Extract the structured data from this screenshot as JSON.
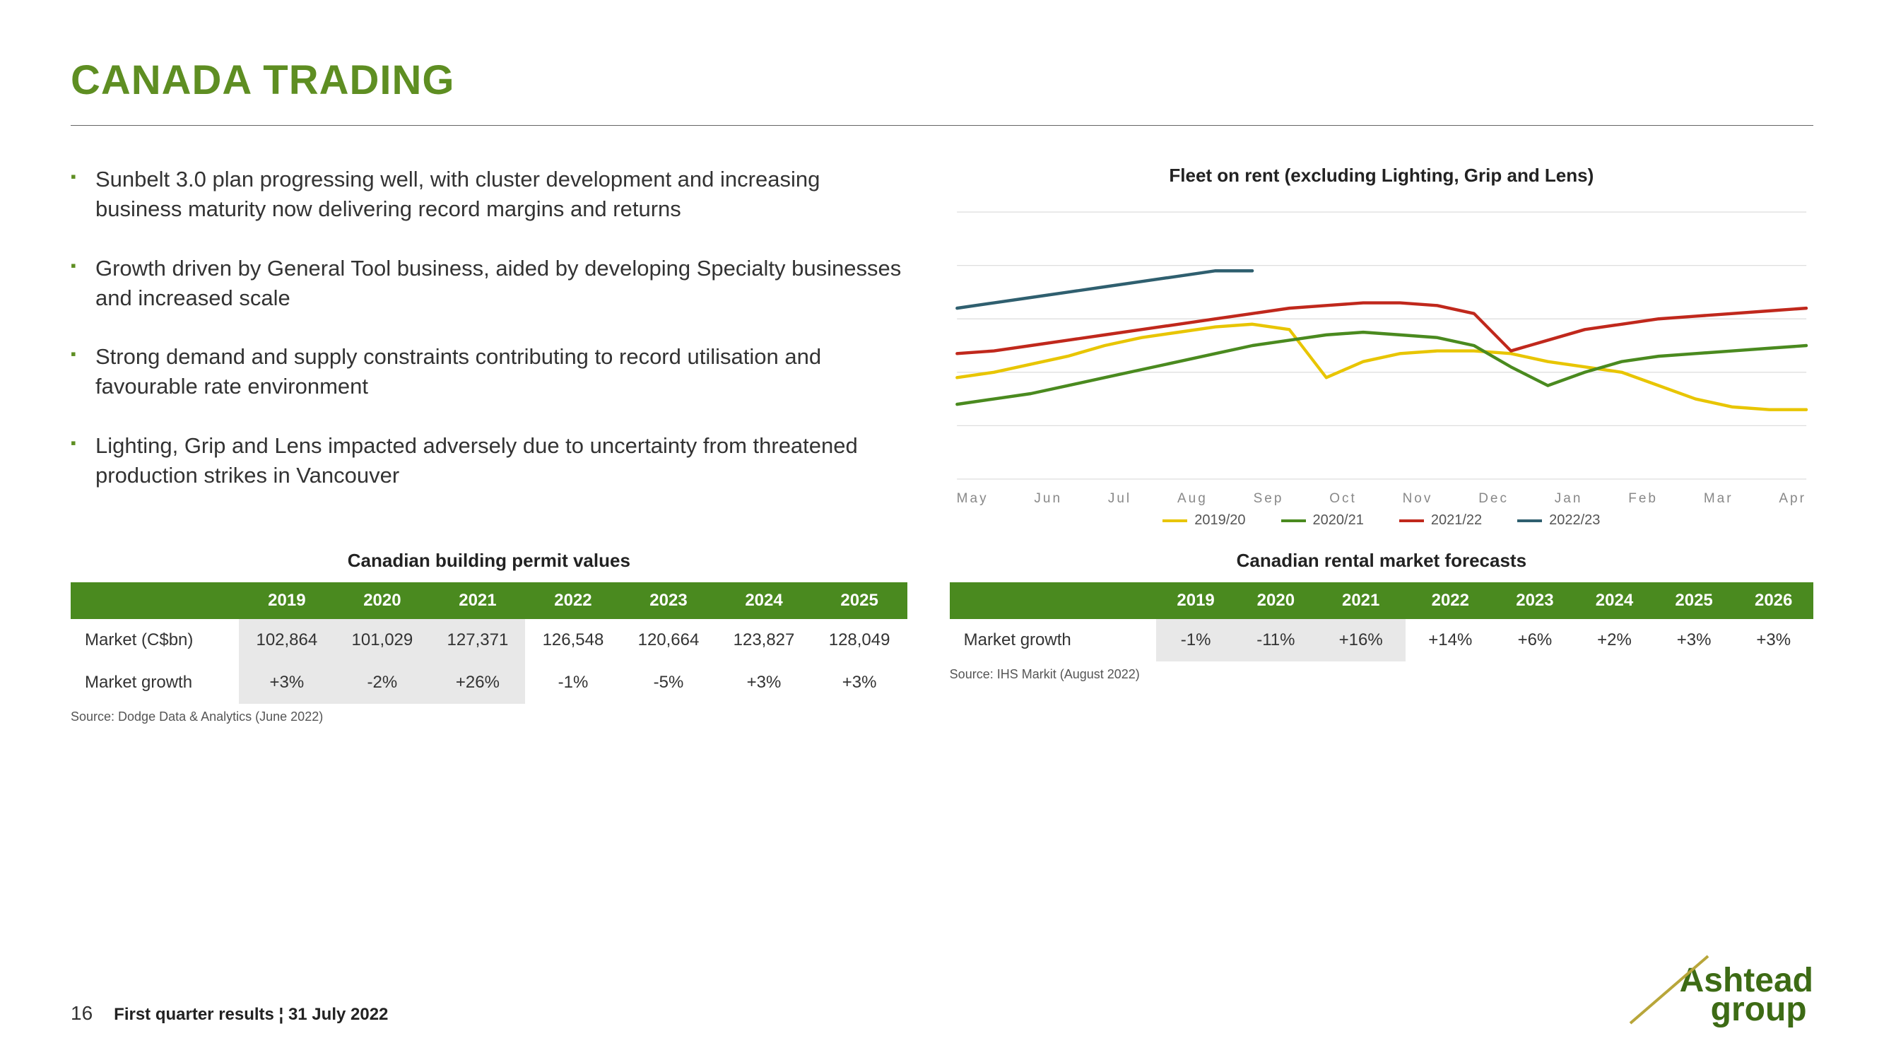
{
  "title": "CANADA TRADING",
  "title_color": "#5e8e22",
  "bullet_color": "#5e8e22",
  "bullets": [
    "Sunbelt 3.0 plan progressing well, with cluster development and increasing business maturity now delivering record margins and returns",
    "Growth driven by General Tool business, aided by developing Specialty businesses and increased scale",
    "Strong demand and supply constraints contributing to record utilisation and favourable rate environment",
    "Lighting, Grip and Lens impacted adversely due to uncertainty from threatened production strikes in Vancouver"
  ],
  "chart": {
    "title": "Fleet on rent (excluding Lighting, Grip and Lens)",
    "x_labels": [
      "May",
      "Jun",
      "Jul",
      "Aug",
      "Sep",
      "Oct",
      "Nov",
      "Dec",
      "Jan",
      "Feb",
      "Mar",
      "Apr"
    ],
    "y_range": [
      0,
      100
    ],
    "grid_color": "#d9d9d9",
    "background": "#ffffff",
    "line_width": 4,
    "series": [
      {
        "name": "2019/20",
        "color": "#e8c500",
        "values": [
          38,
          40,
          43,
          46,
          50,
          53,
          55,
          57,
          58,
          56,
          38,
          44,
          47,
          48,
          48,
          47,
          44,
          42,
          40,
          35,
          30,
          27,
          26,
          26
        ]
      },
      {
        "name": "2020/21",
        "color": "#4a8a1f",
        "values": [
          28,
          30,
          32,
          35,
          38,
          41,
          44,
          47,
          50,
          52,
          54,
          55,
          54,
          53,
          50,
          42,
          35,
          40,
          44,
          46,
          47,
          48,
          49,
          50
        ]
      },
      {
        "name": "2021/22",
        "color": "#c0281c",
        "values": [
          47,
          48,
          50,
          52,
          54,
          56,
          58,
          60,
          62,
          64,
          65,
          66,
          66,
          65,
          62,
          48,
          52,
          56,
          58,
          60,
          61,
          62,
          63,
          64
        ]
      },
      {
        "name": "2022/23",
        "color": "#2f5f6f",
        "values": [
          64,
          66,
          68,
          70,
          72,
          74,
          76,
          78,
          78
        ]
      }
    ]
  },
  "table1": {
    "title": "Canadian building permit values",
    "header_bg": "#4a8a1f",
    "shade_cols": [
      0,
      1,
      2
    ],
    "columns": [
      "2019",
      "2020",
      "2021",
      "2022",
      "2023",
      "2024",
      "2025"
    ],
    "rows": [
      {
        "label": "Market (C$bn)",
        "cells": [
          "102,864",
          "101,029",
          "127,371",
          "126,548",
          "120,664",
          "123,827",
          "128,049"
        ]
      },
      {
        "label": "Market growth",
        "cells": [
          "+3%",
          "-2%",
          "+26%",
          "-1%",
          "-5%",
          "+3%",
          "+3%"
        ]
      }
    ],
    "source": "Source: Dodge Data & Analytics (June 2022)"
  },
  "table2": {
    "title": "Canadian rental market forecasts",
    "header_bg": "#4a8a1f",
    "shade_cols": [
      0,
      1,
      2
    ],
    "columns": [
      "2019",
      "2020",
      "2021",
      "2022",
      "2023",
      "2024",
      "2025",
      "2026"
    ],
    "rows": [
      {
        "label": "Market growth",
        "cells": [
          "-1%",
          "-11%",
          "+16%",
          "+14%",
          "+6%",
          "+2%",
          "+3%",
          "+3%"
        ]
      }
    ],
    "source": "Source: IHS Markit (August 2022)"
  },
  "footer": {
    "page": "16",
    "text": "First quarter results ¦ 31 July 2022",
    "logo_top": "Ashtead",
    "logo_bottom": "group",
    "logo_color_top": "#3d6b15",
    "logo_color_bottom": "#3d6b15",
    "slash_color": "#b8a63a"
  }
}
